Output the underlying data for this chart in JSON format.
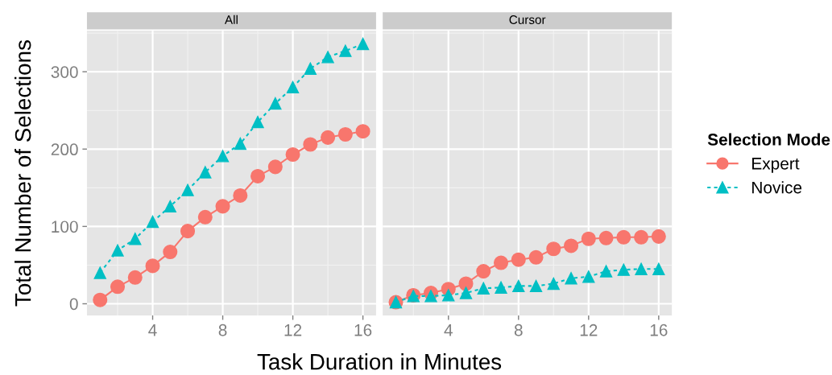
{
  "chart_data": [
    {
      "type": "line",
      "title": "All",
      "xlabel": "Task Duration in Minutes",
      "ylabel": "Total Number of Selections",
      "legend_title": "Selection Mode",
      "legend": "right",
      "grid": true,
      "x": [
        1,
        2,
        3,
        4,
        5,
        6,
        7,
        8,
        9,
        10,
        11,
        12,
        13,
        14,
        15,
        16
      ],
      "xlim": [
        0.25,
        16.75
      ],
      "xticks": [
        4,
        8,
        12,
        16
      ],
      "ylim": [
        -15,
        353
      ],
      "yticks": [
        0,
        100,
        200,
        300
      ],
      "series": [
        {
          "name": "Expert",
          "color": "#f8766d",
          "marker": "circle",
          "line_style": "solid",
          "values": [
            5,
            22,
            34,
            49,
            67,
            94,
            112,
            126,
            140,
            165,
            177,
            193,
            206,
            215,
            219,
            223
          ]
        },
        {
          "name": "Novice",
          "color": "#00bfc4",
          "marker": "triangle",
          "line_style": "dashed",
          "values": [
            40,
            69,
            84,
            106,
            126,
            147,
            170,
            191,
            207,
            235,
            259,
            280,
            304,
            319,
            327,
            336
          ]
        }
      ]
    },
    {
      "type": "line",
      "title": "Cursor",
      "grid": true,
      "tick_labels": "x",
      "x": [
        1,
        2,
        3,
        4,
        5,
        6,
        7,
        8,
        9,
        10,
        11,
        12,
        13,
        14,
        15,
        16
      ],
      "xlim": [
        0.25,
        16.75
      ],
      "xticks": [
        4,
        8,
        12,
        16
      ],
      "ylim": [
        -15,
        353
      ],
      "yticks": [
        0,
        100,
        200,
        300
      ],
      "series": [
        {
          "name": "Expert",
          "color": "#f8766d",
          "marker": "circle",
          "line_style": "solid",
          "values": [
            2,
            11,
            14,
            19,
            26,
            42,
            53,
            57,
            60,
            71,
            75,
            84,
            85,
            86,
            86,
            87
          ]
        },
        {
          "name": "Novice",
          "color": "#00bfc4",
          "marker": "triangle",
          "line_style": "dashed",
          "values": [
            2,
            10,
            10,
            11,
            14,
            20,
            21,
            23,
            23,
            26,
            33,
            35,
            42,
            44,
            45,
            45
          ]
        }
      ]
    }
  ]
}
